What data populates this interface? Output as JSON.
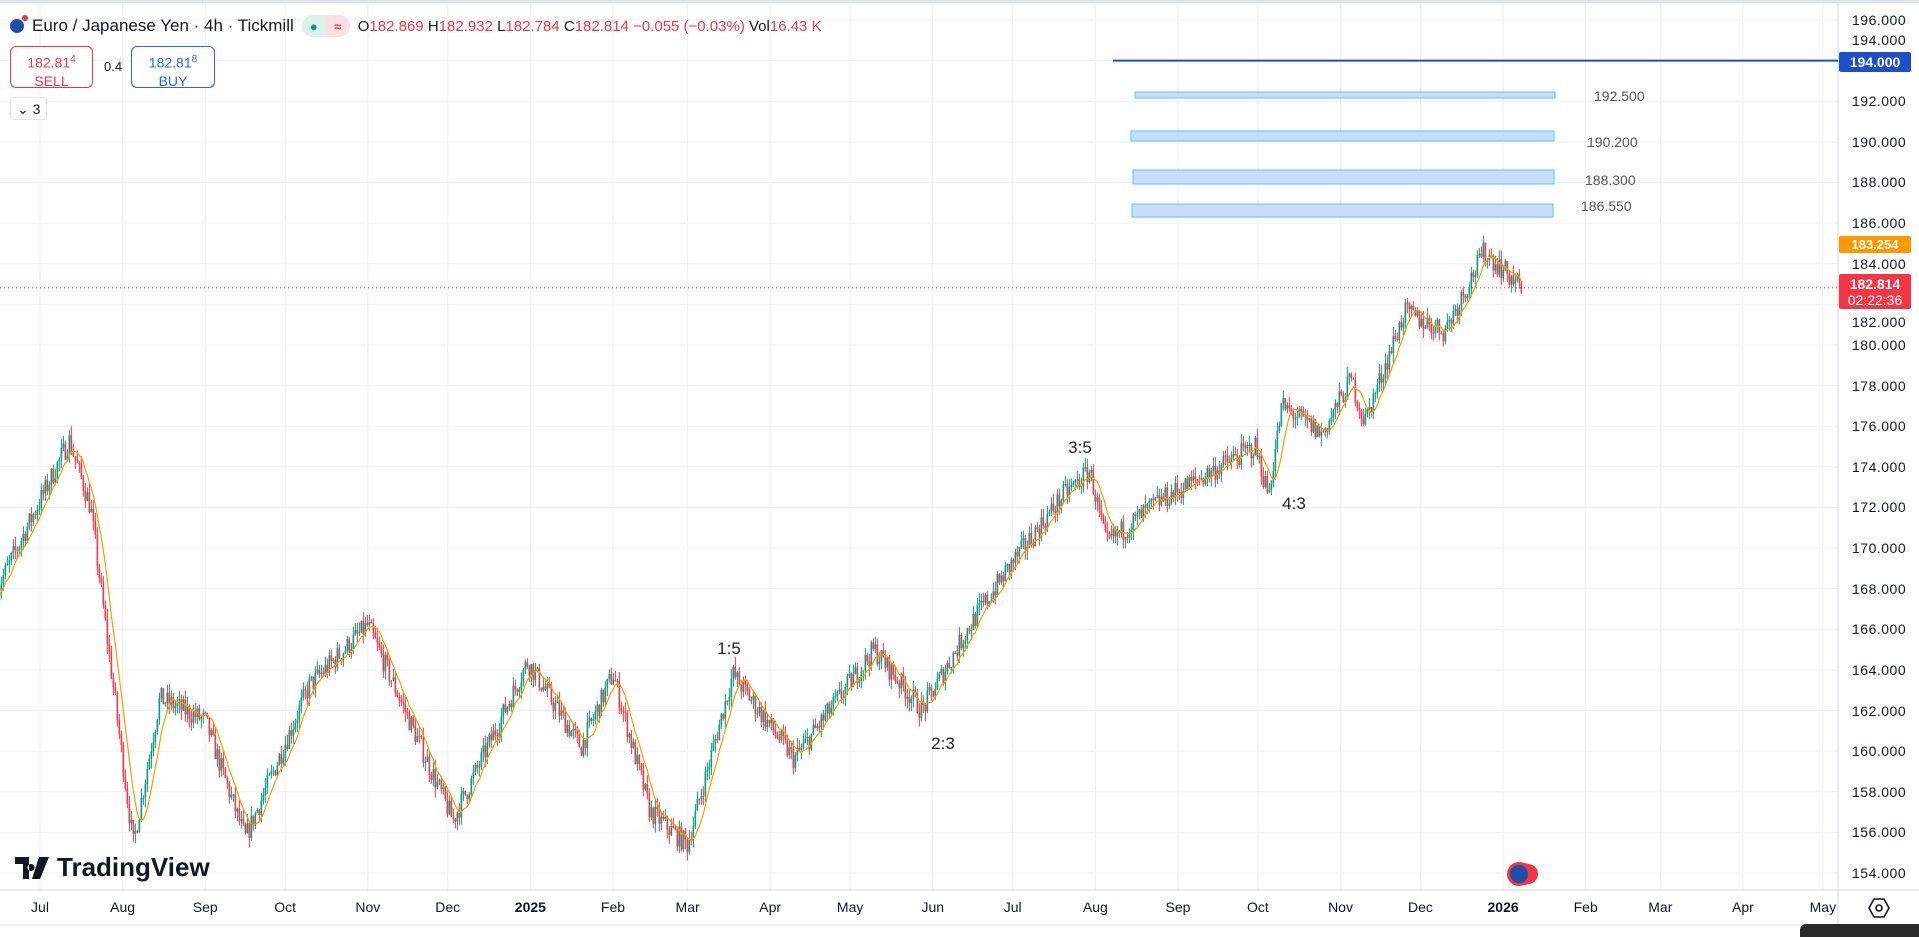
{
  "header": {
    "title": "Euro / Japanese Yen · 4h · Tickmill",
    "open_label": "O",
    "open": "182.869",
    "high_label": "H",
    "high": "182.932",
    "low_label": "L",
    "low": "182.784",
    "close_label": "C",
    "close": "182.814",
    "change": "−0.055 (−0.03%)",
    "vol_label": "Vol",
    "vol": "16.43 K",
    "market_status_icon": "dot-icon",
    "indicator_icon": "approx-icon"
  },
  "trade": {
    "sell_price": "182.81",
    "sell_price_sup": "4",
    "sell_label": "SELL",
    "spread": "0.4",
    "buy_price": "182.81",
    "buy_price_sup": "8",
    "buy_label": "BUY",
    "collapse_count": "3"
  },
  "levels": [
    {
      "label": "192.500"
    },
    {
      "label": "190.200"
    },
    {
      "label": "188.300"
    },
    {
      "label": "186.550"
    }
  ],
  "alert_line": {
    "price": 194.0,
    "label": "194.000",
    "color": "#1e4fc9"
  },
  "wave_labels": [
    "1:5",
    "2:3",
    "3:5",
    "4:3"
  ],
  "price_axis": [
    "196.000",
    "194.000",
    "192.000",
    "190.000",
    "188.000",
    "186.000",
    "184.000",
    "182.000",
    "180.000",
    "178.000",
    "176.000",
    "174.000",
    "172.000",
    "170.000",
    "168.000",
    "166.000",
    "164.000",
    "162.000",
    "160.000",
    "158.000",
    "156.000",
    "154.000"
  ],
  "ma_tag": "183.254",
  "last_price": {
    "price": "182.814",
    "countdown": "02:22:36"
  },
  "time_axis": [
    {
      "label": "Jul",
      "date": "2024-07-01"
    },
    {
      "label": "Aug",
      "date": "2024-08-01"
    },
    {
      "label": "Sep",
      "date": "2024-09-01"
    },
    {
      "label": "Oct",
      "date": "2024-10-01"
    },
    {
      "label": "Nov",
      "date": "2024-11-01"
    },
    {
      "label": "Dec",
      "date": "2024-12-01"
    },
    {
      "label": "2025",
      "date": "2025-01-01",
      "year": true
    },
    {
      "label": "Feb",
      "date": "2025-02-01"
    },
    {
      "label": "Mar",
      "date": "2025-03-01"
    },
    {
      "label": "Apr",
      "date": "2025-04-01"
    },
    {
      "label": "May",
      "date": "2025-05-01"
    },
    {
      "label": "Jun",
      "date": "2025-06-01"
    },
    {
      "label": "Jul",
      "date": "2025-07-01"
    },
    {
      "label": "Aug",
      "date": "2025-08-01"
    },
    {
      "label": "Sep",
      "date": "2025-09-01"
    },
    {
      "label": "Oct",
      "date": "2025-10-01"
    },
    {
      "label": "Nov",
      "date": "2025-11-01"
    },
    {
      "label": "Dec",
      "date": "2025-12-01"
    },
    {
      "label": "2026",
      "date": "2026-01-01",
      "year": true
    },
    {
      "label": "Feb",
      "date": "2026-02-01"
    },
    {
      "label": "Mar",
      "date": "2026-03-01"
    },
    {
      "label": "Apr",
      "date": "2026-04-01"
    },
    {
      "label": "May",
      "date": "2026-05-01"
    }
  ],
  "logo": "TradingView",
  "colors": {
    "up": "#089981",
    "down": "#f23645",
    "ma": "#ff9800",
    "grid": "#eef0f3",
    "box_fill": "#c9dcfa",
    "box_border": "#4dd0e1"
  },
  "chart_data": {
    "type": "candlestick",
    "symbol": "EURJPY",
    "interval": "4h",
    "ylim": [
      153,
      197
    ],
    "path": [
      [
        "2024-06-15",
        168
      ],
      [
        "2024-07-12",
        175.3
      ],
      [
        "2024-07-20",
        172
      ],
      [
        "2024-08-05",
        155.4
      ],
      [
        "2024-08-15",
        162.6
      ],
      [
        "2024-09-01",
        161.5
      ],
      [
        "2024-09-16",
        155.7
      ],
      [
        "2024-10-10",
        163.2
      ],
      [
        "2024-11-01",
        166.2
      ],
      [
        "2024-11-15",
        162
      ],
      [
        "2024-12-03",
        156.6
      ],
      [
        "2024-12-31",
        164.4
      ],
      [
        "2025-01-20",
        160.2
      ],
      [
        "2025-02-01",
        163.8
      ],
      [
        "2025-02-15",
        157
      ],
      [
        "2025-03-01",
        155.4
      ],
      [
        "2025-03-18",
        163.8
      ],
      [
        "2025-04-10",
        159.6
      ],
      [
        "2025-05-10",
        165
      ],
      [
        "2025-05-28",
        162
      ],
      [
        "2025-06-15",
        166.2
      ],
      [
        "2025-07-01",
        169.3
      ],
      [
        "2025-07-20",
        172.6
      ],
      [
        "2025-07-30",
        173.8
      ],
      [
        "2025-08-05",
        170.2
      ],
      [
        "2025-08-25",
        172.3
      ],
      [
        "2025-09-30",
        175
      ],
      [
        "2025-10-05",
        172.6
      ],
      [
        "2025-10-10",
        177
      ],
      [
        "2025-10-25",
        175.6
      ],
      [
        "2025-11-05",
        178.3
      ],
      [
        "2025-11-10",
        176.2
      ],
      [
        "2025-11-25",
        181.6
      ],
      [
        "2025-12-10",
        180.7
      ],
      [
        "2025-12-25",
        184.6
      ],
      [
        "2026-01-08",
        182.8
      ]
    ]
  }
}
